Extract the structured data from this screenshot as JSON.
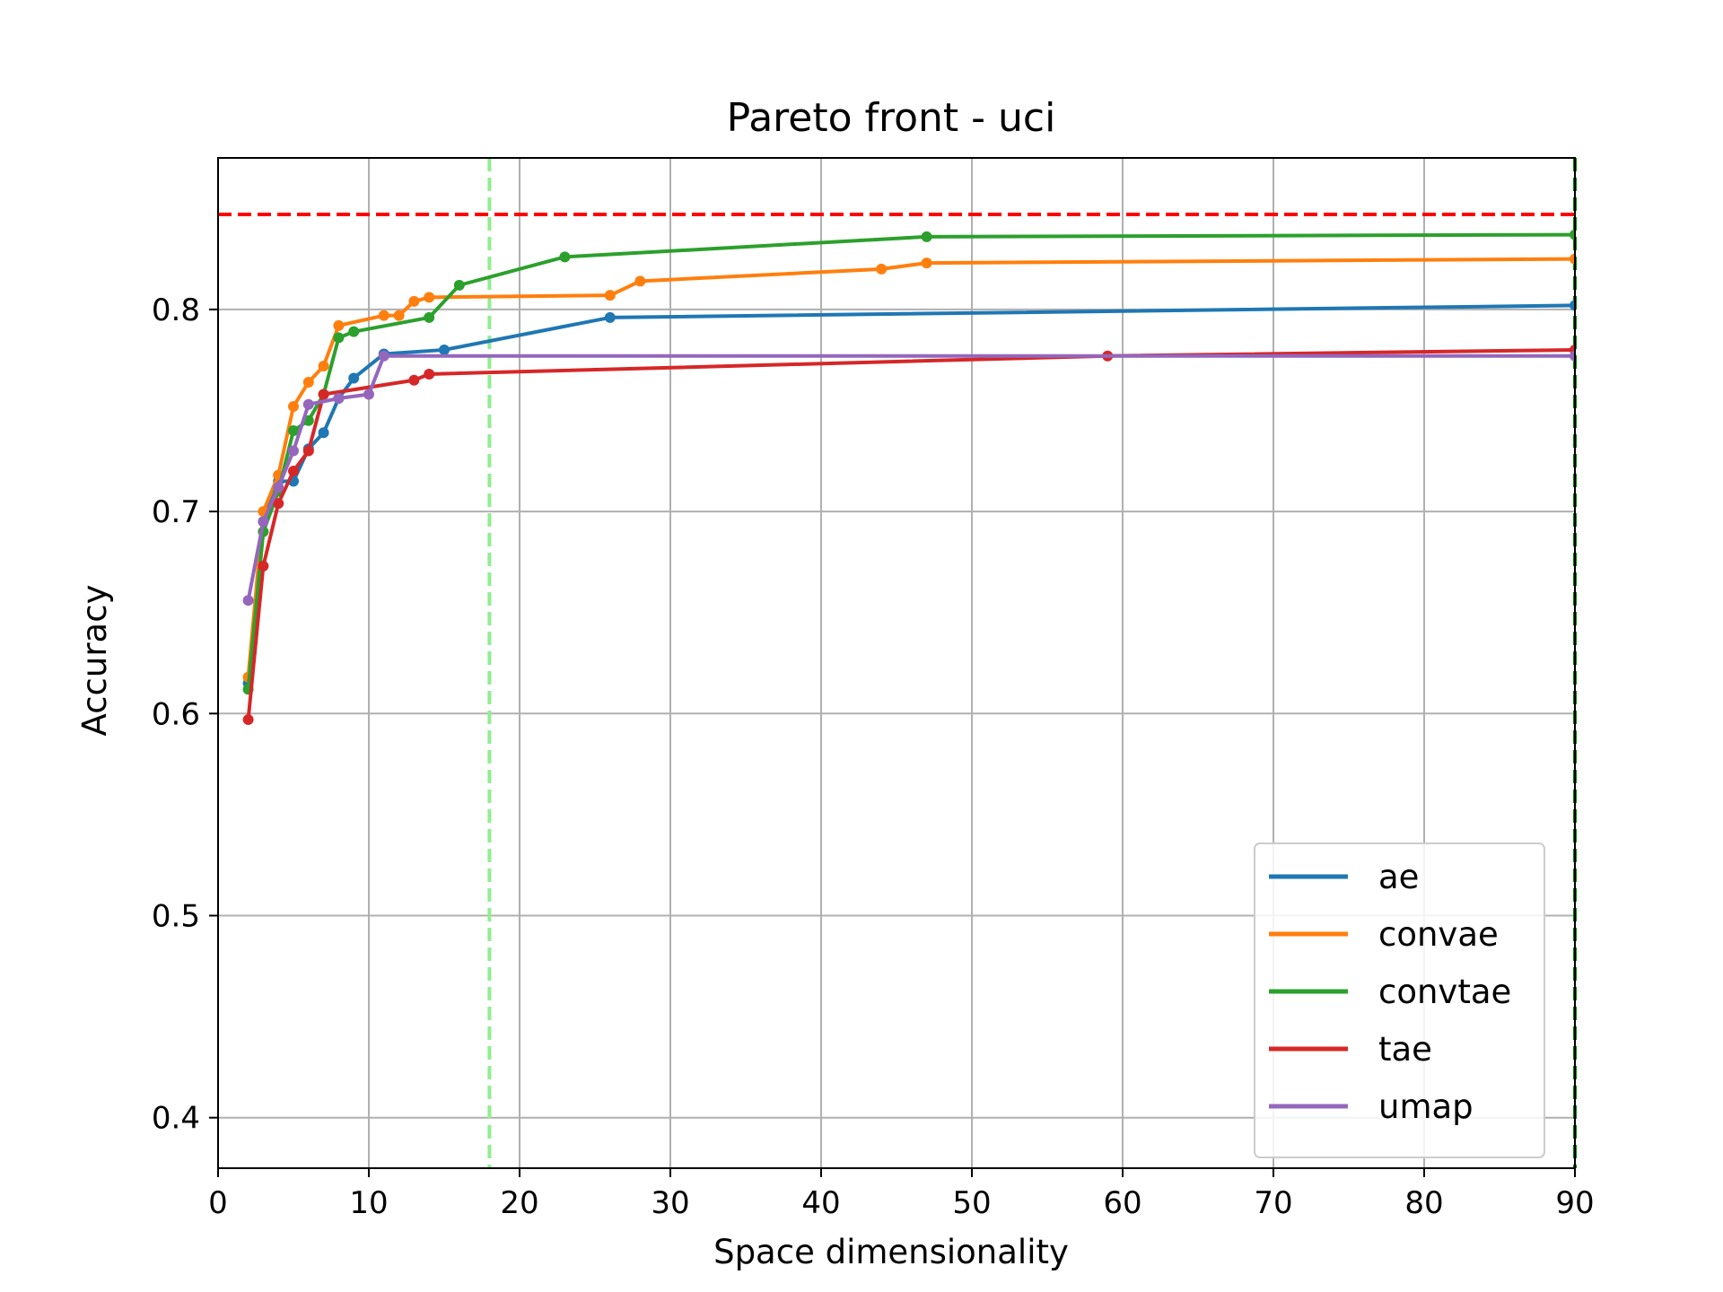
{
  "chart_data": {
    "type": "line",
    "title": "Pareto front - uci",
    "xlabel": "Space dimensionality",
    "ylabel": "Accuracy",
    "xlim": [
      0,
      90
    ],
    "ylim": [
      0.375,
      0.875
    ],
    "xticks": [
      0,
      10,
      20,
      30,
      40,
      50,
      60,
      70,
      80,
      90
    ],
    "yticks": [
      0.4,
      0.5,
      0.6,
      0.7,
      0.8
    ],
    "ytick_labels": [
      "0.4",
      "0.5",
      "0.6",
      "0.7",
      "0.8"
    ],
    "grid": true,
    "legend_position": "lower-right",
    "reference_lines": [
      {
        "orientation": "horizontal",
        "value": 0.847,
        "color": "#ff0000",
        "style": "dashed"
      },
      {
        "orientation": "vertical",
        "value": 18,
        "color": "#90ee90",
        "style": "dashed"
      },
      {
        "orientation": "vertical",
        "value": 90,
        "color": "#008000",
        "style": "dashed"
      }
    ],
    "series": [
      {
        "name": "ae",
        "color": "#1f77b4",
        "points": [
          [
            2,
            0.615
          ],
          [
            3,
            0.695
          ],
          [
            4,
            0.715
          ],
          [
            5,
            0.715
          ],
          [
            6,
            0.731
          ],
          [
            7,
            0.739
          ],
          [
            8,
            0.756
          ],
          [
            9,
            0.766
          ],
          [
            11,
            0.778
          ],
          [
            15,
            0.78
          ],
          [
            26,
            0.796
          ],
          [
            90,
            0.802
          ]
        ]
      },
      {
        "name": "convae",
        "color": "#ff7f0e",
        "points": [
          [
            2,
            0.618
          ],
          [
            3,
            0.7
          ],
          [
            4,
            0.718
          ],
          [
            5,
            0.752
          ],
          [
            6,
            0.764
          ],
          [
            7,
            0.772
          ],
          [
            8,
            0.792
          ],
          [
            11,
            0.797
          ],
          [
            12,
            0.797
          ],
          [
            13,
            0.804
          ],
          [
            14,
            0.806
          ],
          [
            26,
            0.807
          ],
          [
            28,
            0.814
          ],
          [
            44,
            0.82
          ],
          [
            47,
            0.823
          ],
          [
            90,
            0.825
          ]
        ]
      },
      {
        "name": "convtae",
        "color": "#2ca02c",
        "points": [
          [
            2,
            0.612
          ],
          [
            3,
            0.69
          ],
          [
            4,
            0.71
          ],
          [
            5,
            0.74
          ],
          [
            6,
            0.745
          ],
          [
            7,
            0.758
          ],
          [
            8,
            0.786
          ],
          [
            9,
            0.789
          ],
          [
            14,
            0.796
          ],
          [
            16,
            0.812
          ],
          [
            23,
            0.826
          ],
          [
            47,
            0.836
          ],
          [
            90,
            0.837
          ]
        ]
      },
      {
        "name": "tae",
        "color": "#d62728",
        "points": [
          [
            2,
            0.597
          ],
          [
            3,
            0.673
          ],
          [
            4,
            0.704
          ],
          [
            5,
            0.72
          ],
          [
            6,
            0.73
          ],
          [
            7,
            0.758
          ],
          [
            13,
            0.765
          ],
          [
            14,
            0.768
          ],
          [
            59,
            0.777
          ],
          [
            90,
            0.78
          ]
        ]
      },
      {
        "name": "umap",
        "color": "#9467bd",
        "points": [
          [
            2,
            0.656
          ],
          [
            3,
            0.695
          ],
          [
            4,
            0.712
          ],
          [
            5,
            0.73
          ],
          [
            6,
            0.753
          ],
          [
            8,
            0.756
          ],
          [
            10,
            0.758
          ],
          [
            11,
            0.777
          ],
          [
            90,
            0.777
          ]
        ]
      }
    ]
  }
}
